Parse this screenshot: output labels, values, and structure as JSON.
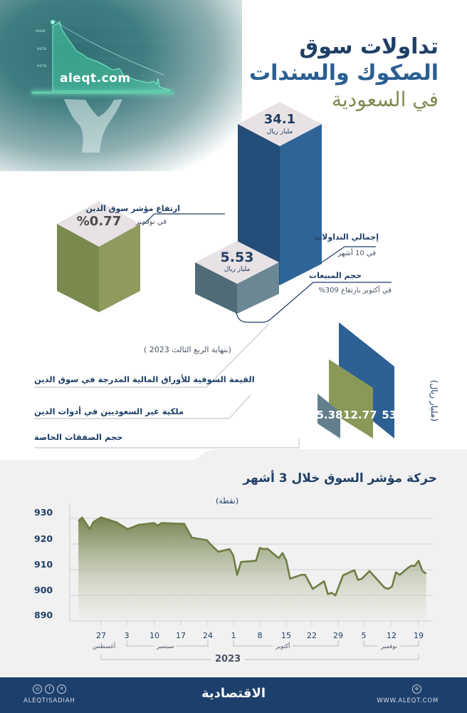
{
  "hero": {
    "url": "aleqt.com"
  },
  "title": {
    "line1": "تداولات سوق",
    "line2": "الصكوك والسندات",
    "line3": "في السعودية"
  },
  "cubes": [
    {
      "id": "total-trading",
      "value": "34.1",
      "unit": "مليار ريال",
      "label": "إجمالي التداولات",
      "sub": "في 10 أشهر",
      "color_front_left": "#234e7a",
      "color_front_right": "#2e6498",
      "color_top": "#e8e2e4"
    },
    {
      "id": "sales-volume",
      "value": "5.53",
      "unit": "مليار ريال",
      "label": "حجم المبيعات",
      "sub": "في أكتوبر بارتفاع 309%",
      "color_front_left": "#4f6b78",
      "color_front_right": "#6b8793",
      "color_top": "#e8e2e4"
    },
    {
      "id": "debt-index-rise",
      "value": "%0.77",
      "label": "ارتفاع مؤشر سوق الدين",
      "sub": "في نوفمبر",
      "color_front_left": "#7a8a4e",
      "color_front_right": "#8e9a5e",
      "color_top": "#e8e2e4"
    }
  ],
  "quarter_section": {
    "caption": "(بنهاية الربع الثالث 2023 )",
    "unit_label": "(مليار ريال)",
    "rows": [
      {
        "label": "القيمة السوقية للأوراق المالية المدرجة في سوق الدين",
        "value": "534",
        "color": "#2d6093"
      },
      {
        "label": "ملكية غير السعوديين في أدوات الدين",
        "value": "12.77",
        "color": "#8a9858"
      },
      {
        "label": "حجم الصفقات الخاصة",
        "value": "5.38",
        "color": "#627f8d"
      }
    ]
  },
  "chart_section": {
    "title": "حركة مؤشر السوق خلال 3 أشهر",
    "unit": "(نقطة)"
  },
  "chart_data": {
    "type": "area",
    "title": "حركة مؤشر السوق خلال 3 أشهر",
    "ylabel": "(نقطة)",
    "xlabel": "2023",
    "ylim": [
      890,
      930
    ],
    "yticks": [
      930,
      920,
      910,
      900,
      890
    ],
    "grid": true,
    "x_ticks": [
      "27",
      "3",
      "10",
      "17",
      "24",
      "1",
      "8",
      "15",
      "22",
      "29",
      "5",
      "12",
      "19"
    ],
    "months": [
      {
        "name": "أغسطس",
        "ticks": [
          "27"
        ]
      },
      {
        "name": "سبتمبر",
        "ticks": [
          "3",
          "10",
          "17",
          "24"
        ]
      },
      {
        "name": "أكتوبر",
        "ticks": [
          "1",
          "8",
          "15",
          "22",
          "29"
        ]
      },
      {
        "name": "نوفمبر",
        "ticks": [
          "5",
          "12",
          "19"
        ]
      }
    ],
    "year": "2023",
    "series": [
      {
        "name": "مؤشر سوق الدين",
        "color": "#6f7d45",
        "points": [
          [
            "Aug 21",
            929.0
          ],
          [
            "Aug 22",
            930.3
          ],
          [
            "Aug 24",
            925.8
          ],
          [
            "Aug 25",
            928.6
          ],
          [
            "Aug 27",
            930.4
          ],
          [
            "Aug 31",
            928.5
          ],
          [
            "Sep 3",
            925.8
          ],
          [
            "Sep 6",
            927.5
          ],
          [
            "Sep 10",
            928.2
          ],
          [
            "Sep 11",
            927.2
          ],
          [
            "Sep 12",
            928.2
          ],
          [
            "Sep 17",
            927.9
          ],
          [
            "Sep 18",
            927.9
          ],
          [
            "Sep 20",
            922.5
          ],
          [
            "Sep 24",
            921.5
          ],
          [
            "Sep 25",
            919.8
          ],
          [
            "Sep 27",
            917.0
          ],
          [
            "Sep 30",
            918.0
          ],
          [
            "Oct 1",
            915.5
          ],
          [
            "Oct 2",
            908.0
          ],
          [
            "Oct 3",
            913.0
          ],
          [
            "Oct 7",
            913.5
          ],
          [
            "Oct 8",
            918.5
          ],
          [
            "Oct 9",
            918.0
          ],
          [
            "Oct 10",
            918.2
          ],
          [
            "Oct 13",
            914.5
          ],
          [
            "Oct 14",
            916.5
          ],
          [
            "Oct 15",
            913.5
          ],
          [
            "Oct 16",
            906.5
          ],
          [
            "Oct 19",
            908.0
          ],
          [
            "Oct 20",
            908.0
          ],
          [
            "Oct 22",
            902.5
          ],
          [
            "Oct 25",
            905.5
          ],
          [
            "Oct 26",
            900.5
          ],
          [
            "Oct 27",
            901.0
          ],
          [
            "Oct 28",
            900.0
          ],
          [
            "Oct 30",
            907.8
          ],
          [
            "Nov 2",
            909.8
          ],
          [
            "Nov 3",
            906.0
          ],
          [
            "Nov 4",
            906.5
          ],
          [
            "Nov 6",
            909.5
          ],
          [
            "Nov 10",
            903.0
          ],
          [
            "Nov 11",
            902.5
          ],
          [
            "Nov 12",
            903.5
          ],
          [
            "Nov 13",
            909.0
          ],
          [
            "Nov 14",
            908.0
          ],
          [
            "Nov 16",
            910.5
          ],
          [
            "Nov 17",
            911.5
          ],
          [
            "Nov 18",
            911.5
          ],
          [
            "Nov 19",
            913.5
          ],
          [
            "Nov 20",
            909.5
          ],
          [
            "Nov 21",
            908.5
          ]
        ]
      }
    ]
  },
  "footer": {
    "social_handle": "ALEQTISADIAH",
    "logo_text": "الاقتصادية",
    "website": "WWW.ALEQT.COM",
    "social_icons": [
      "instagram-icon",
      "facebook-icon",
      "x-icon"
    ]
  }
}
